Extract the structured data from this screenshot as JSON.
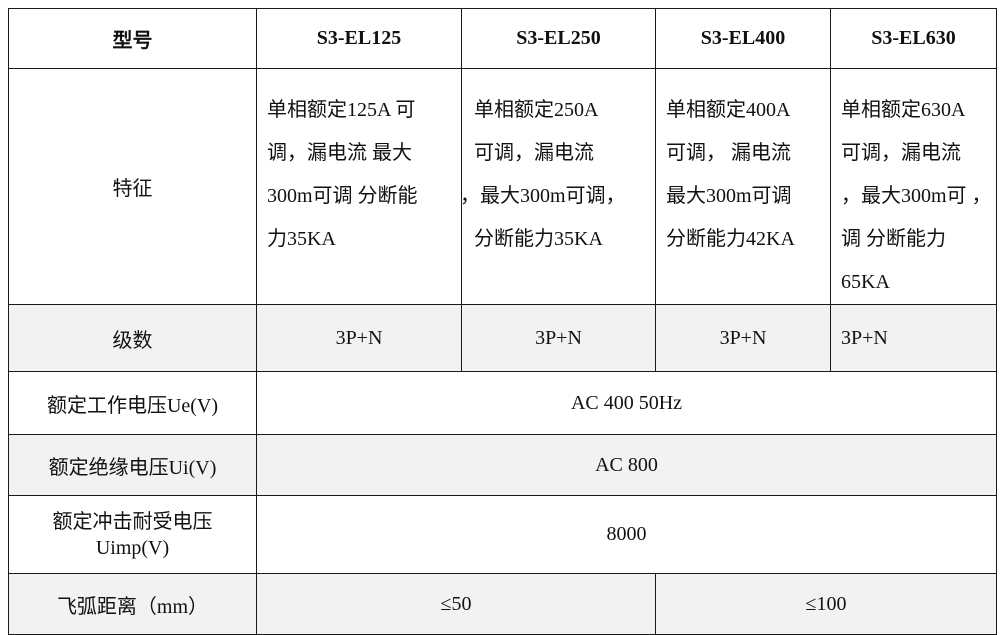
{
  "header": {
    "model_label": "型号",
    "models": [
      "S3-EL125",
      "S3-EL250",
      "S3-EL400",
      "S3-EL630"
    ]
  },
  "features": {
    "label": "特征",
    "cells": [
      [
        "单相额定125A 可",
        "调，漏电流 最大",
        "300m可调 分断能",
        "力35KA"
      ],
      [
        " 单相额定250A",
        "可调，漏电流",
        "，最大300m可调，",
        "分断能力35KA"
      ],
      [
        "单相额定400A",
        "可调， 漏电流",
        "最大300m可调",
        "分断能力42KA"
      ],
      [
        "单相额定630A",
        "可调，漏电流",
        "，最大300m可 ，",
        "调 分断能力",
        "65KA"
      ]
    ]
  },
  "poles": {
    "label": "级数",
    "values": [
      "3P+N",
      "3P+N",
      "3P+N",
      "3P+N"
    ]
  },
  "ue": {
    "label": "额定工作电压Ue(V)",
    "value": "AC 400 50Hz"
  },
  "ui": {
    "label": "额定绝缘电压Ui(V)",
    "value": "AC 800"
  },
  "uimp": {
    "label_line1": "额定冲击耐受电压",
    "label_line2": "Uimp(V)",
    "value": "8000"
  },
  "arc": {
    "label": "飞弧距离（mm）",
    "values": [
      "≤50",
      "≤100"
    ]
  },
  "colors": {
    "shaded_row": "#f2f2f2",
    "border": "#1a1a1a"
  }
}
